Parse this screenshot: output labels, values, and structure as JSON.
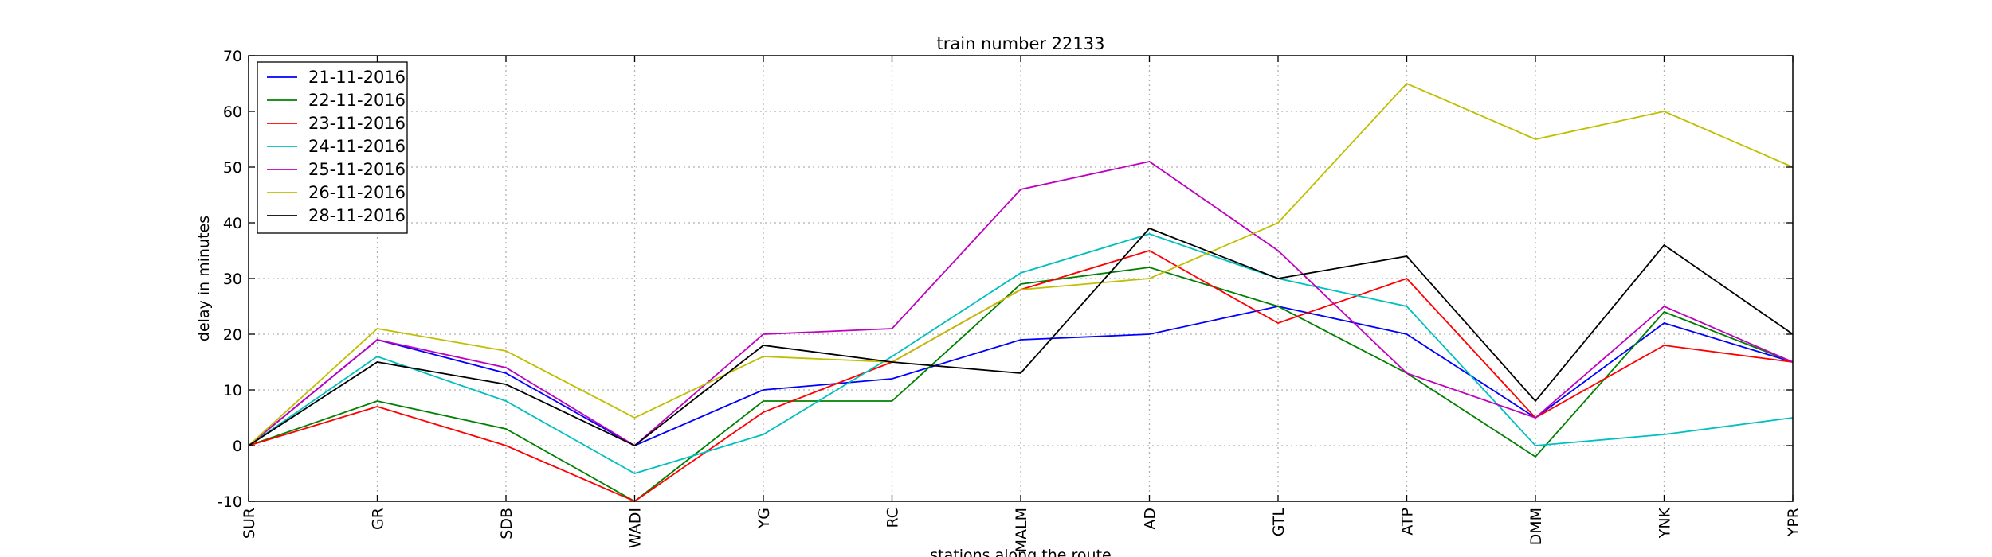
{
  "chart_data": {
    "type": "line",
    "title": "train number 22133",
    "xlabel": "stations along the route",
    "ylabel": "delay in minutes",
    "categories": [
      "SUR",
      "GR",
      "SDB",
      "WADI",
      "YG",
      "RC",
      "MALM",
      "AD",
      "GTL",
      "ATP",
      "DMM",
      "YNK",
      "YPR"
    ],
    "ylim": [
      -10,
      70
    ],
    "yticks": [
      -10,
      0,
      10,
      20,
      30,
      40,
      50,
      60,
      70
    ],
    "grid": true,
    "legend_position": "top-left",
    "series": [
      {
        "name": "21-11-2016",
        "color": "#0000ff",
        "values": [
          0,
          19,
          13,
          0,
          10,
          12,
          19,
          20,
          25,
          20,
          5,
          22,
          15
        ]
      },
      {
        "name": "22-11-2016",
        "color": "#008000",
        "values": [
          0,
          8,
          3,
          -10,
          8,
          8,
          29,
          32,
          25,
          13,
          -2,
          24,
          15
        ]
      },
      {
        "name": "23-11-2016",
        "color": "#ff0000",
        "values": [
          0,
          7,
          0,
          -10,
          6,
          15,
          28,
          35,
          22,
          30,
          5,
          18,
          15
        ]
      },
      {
        "name": "24-11-2016",
        "color": "#00bfbf",
        "values": [
          0,
          16,
          8,
          -5,
          2,
          16,
          31,
          38,
          30,
          25,
          0,
          2,
          5
        ]
      },
      {
        "name": "25-11-2016",
        "color": "#bf00bf",
        "values": [
          0,
          19,
          14,
          0,
          20,
          21,
          46,
          51,
          35,
          13,
          5,
          25,
          15
        ]
      },
      {
        "name": "26-11-2016",
        "color": "#bfbf00",
        "values": [
          0,
          21,
          17,
          5,
          16,
          15,
          28,
          30,
          40,
          65,
          55,
          60,
          50
        ]
      },
      {
        "name": "28-11-2016",
        "color": "#000000",
        "values": [
          0,
          15,
          11,
          0,
          18,
          15,
          13,
          39,
          30,
          34,
          8,
          36,
          20
        ]
      }
    ]
  }
}
